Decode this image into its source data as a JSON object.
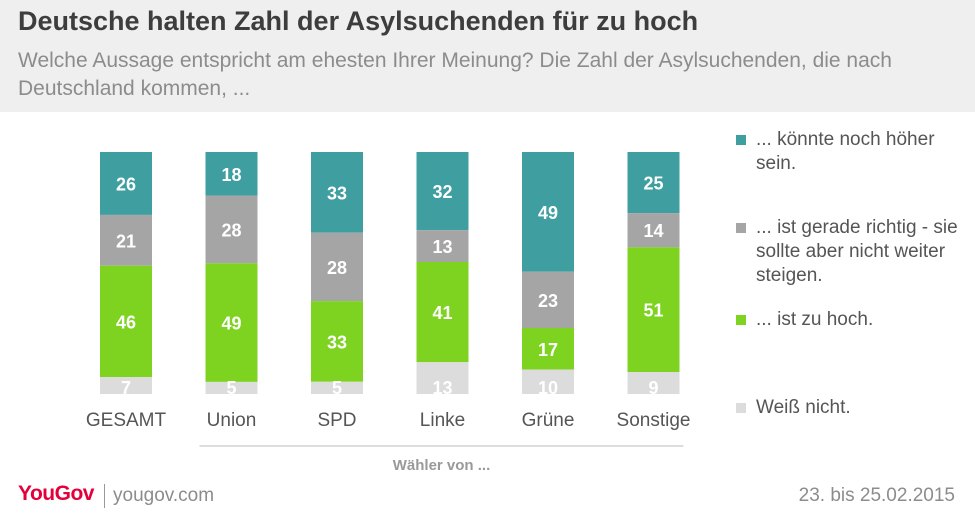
{
  "header": {
    "title": "Deutsche halten Zahl der Asylsuchenden für zu hoch",
    "subtitle": "Welche Aussage entspricht am ehesten Ihrer Meinung? Die Zahl der Asylsuchenden, die nach Deutschland kommen, ..."
  },
  "footer": {
    "brand": "YouGov",
    "url": "yougov.com",
    "date": "23. bis 25.02.2015"
  },
  "chart_data": {
    "type": "bar",
    "stacked": true,
    "xlabel": "Wähler von ...",
    "categories": [
      "GESAMT",
      "Union",
      "SPD",
      "Linke",
      "Grüne",
      "Sonstige"
    ],
    "series": [
      {
        "name": "... könnte noch höher sein.",
        "color": "#3e9ea0",
        "values": [
          26,
          18,
          33,
          32,
          49,
          25
        ]
      },
      {
        "name": "... ist gerade richtig - sie sollte aber nicht weiter steigen.",
        "color": "#a5a5a5",
        "values": [
          21,
          28,
          28,
          13,
          23,
          14
        ]
      },
      {
        "name": "... ist zu hoch.",
        "color": "#7ed321",
        "values": [
          46,
          49,
          33,
          41,
          17,
          51
        ]
      },
      {
        "name": "Weiß nicht.",
        "color": "#dcdcdc",
        "values": [
          7,
          5,
          5,
          13,
          10,
          9
        ]
      }
    ]
  }
}
